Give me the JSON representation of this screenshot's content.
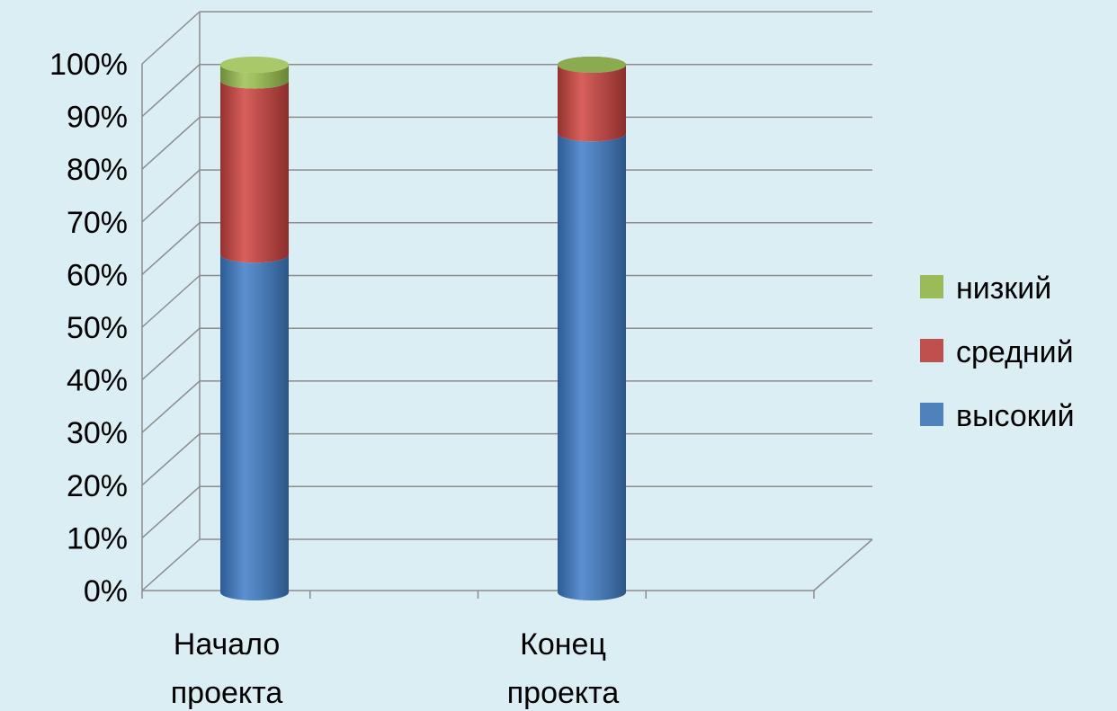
{
  "chart_data": {
    "type": "bar",
    "stacked": true,
    "percent": true,
    "three_d": true,
    "categories": [
      "Начало\nпроекта",
      "Конец\nпроекта"
    ],
    "series": [
      {
        "name": "высокий",
        "values": [
          64,
          87
        ],
        "color": "#4f81bd"
      },
      {
        "name": "средний",
        "values": [
          33,
          13
        ],
        "color": "#c0504d"
      },
      {
        "name": "низкий",
        "values": [
          3,
          0
        ],
        "color": "#9bbb59"
      }
    ],
    "y_ticks": [
      "0%",
      "10%",
      "20%",
      "30%",
      "40%",
      "50%",
      "60%",
      "70%",
      "80%",
      "90%",
      "100%"
    ],
    "ylim": [
      0,
      100
    ],
    "grid": true,
    "legend": {
      "position": "right",
      "items": [
        "низкий",
        "средний",
        "высокий"
      ]
    }
  }
}
